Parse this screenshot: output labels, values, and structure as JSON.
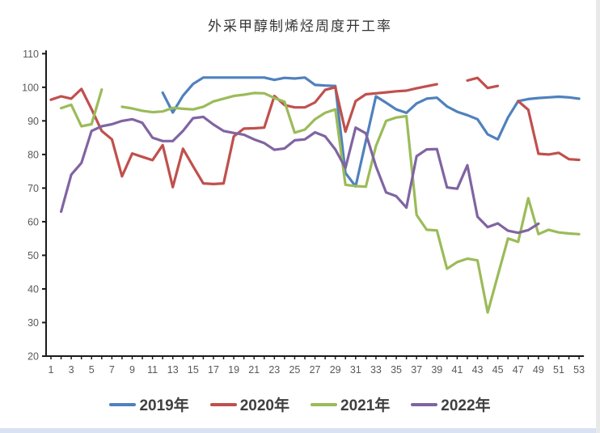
{
  "window": {
    "bottom_strip_color": "#d9e2f1",
    "right_strip_color": "#e9e9e9"
  },
  "chart_data": {
    "type": "line",
    "title": "外采甲醇制烯烃周度开工率",
    "title_color": "#333333",
    "xlabel": "",
    "ylabel": "",
    "x": [
      1,
      2,
      3,
      4,
      5,
      6,
      7,
      8,
      9,
      10,
      11,
      12,
      13,
      14,
      15,
      16,
      17,
      18,
      19,
      20,
      21,
      22,
      23,
      24,
      25,
      26,
      27,
      28,
      29,
      30,
      31,
      32,
      33,
      34,
      35,
      36,
      37,
      38,
      39,
      40,
      41,
      42,
      43,
      44,
      45,
      46,
      47,
      48,
      49,
      50,
      51,
      52,
      53
    ],
    "x_tick_labels": [
      1,
      3,
      5,
      7,
      9,
      11,
      13,
      15,
      17,
      19,
      21,
      23,
      25,
      27,
      29,
      31,
      33,
      35,
      37,
      39,
      41,
      43,
      45,
      47,
      49,
      51,
      53
    ],
    "ylim": [
      20,
      110
    ],
    "y_step": 10,
    "grid": false,
    "legend_position": "bottom",
    "axis_color": "#1a1a1a",
    "tick_label_color": "#595959",
    "series": [
      {
        "name": "2019年",
        "color": "#4F81BD",
        "values": [
          null,
          null,
          null,
          null,
          null,
          null,
          null,
          null,
          null,
          null,
          null,
          98.4,
          92.5,
          97.5,
          101,
          102.9,
          102.9,
          102.9,
          102.9,
          102.9,
          102.9,
          102.9,
          102.2,
          102.8,
          102.6,
          102.9,
          100.7,
          100.5,
          100.4,
          74.5,
          70.5,
          84,
          97.3,
          95.4,
          93.4,
          92.4,
          95.2,
          96.6,
          96.9,
          94.3,
          92.7,
          91.7,
          90.5,
          86,
          84.5,
          91,
          95.9,
          96.5,
          96.8,
          97,
          97.2,
          97,
          96.6
        ]
      },
      {
        "name": "2020年",
        "color": "#C0504D",
        "values": [
          96.3,
          97.3,
          96.6,
          99.5,
          93.5,
          87,
          84.5,
          73.5,
          80.3,
          79.3,
          78.3,
          82.8,
          70.3,
          81.7,
          76.5,
          71.4,
          71.2,
          71.4,
          85.4,
          87.7,
          87.8,
          88,
          97.4,
          94.7,
          94,
          94,
          95.5,
          99.2,
          100,
          86.8,
          95.9,
          97.9,
          98.2,
          98.5,
          98.8,
          99,
          99.7,
          100.3,
          100.9,
          null,
          null,
          102,
          102.8,
          99.8,
          100.4,
          null,
          95.9,
          93.3,
          80.2,
          80,
          80.5,
          78.6,
          78.4
        ]
      },
      {
        "name": "2021年",
        "color": "#9BBB59",
        "values": [
          null,
          93.8,
          94.8,
          88.4,
          89,
          99.3,
          null,
          94.2,
          93.7,
          93,
          92.6,
          92.8,
          93.9,
          93.6,
          93.4,
          94.2,
          95.8,
          96.6,
          97.4,
          97.8,
          98.3,
          98.2,
          96.8,
          95.7,
          86.5,
          87.4,
          90.5,
          92.4,
          93.4,
          71,
          70.6,
          70.4,
          82.5,
          90,
          91,
          91.4,
          62,
          57.6,
          57.4,
          46,
          48,
          49,
          48.5,
          33,
          44,
          55,
          54,
          67,
          56.3,
          57.6,
          56.8,
          56.5,
          56.3
        ]
      },
      {
        "name": "2022年",
        "color": "#8064A2",
        "values": [
          null,
          63,
          74,
          77.5,
          87,
          88.4,
          89,
          90,
          90.5,
          89.4,
          85,
          84,
          84,
          87,
          90.8,
          91.2,
          88.9,
          87,
          86.4,
          85.9,
          84.5,
          83.4,
          81.4,
          81.8,
          84.2,
          84.5,
          86.6,
          85.4,
          81.5,
          76,
          88,
          86.3,
          76.5,
          68.7,
          67.6,
          64.2,
          79.5,
          81.5,
          81.6,
          70.2,
          69.8,
          76.8,
          61.5,
          58.4,
          59.5,
          57.3,
          56.7,
          57.5,
          59.4,
          null,
          null,
          null,
          null
        ]
      }
    ]
  }
}
